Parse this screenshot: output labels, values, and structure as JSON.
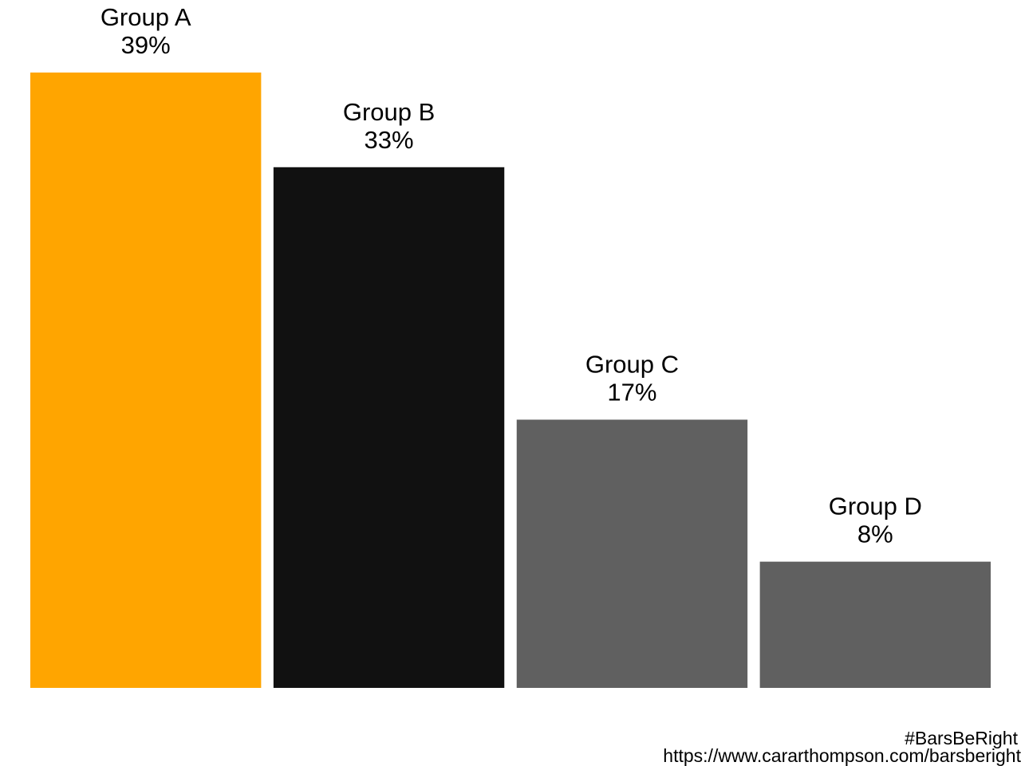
{
  "chart_data": {
    "type": "bar",
    "categories": [
      "Group A",
      "Group B",
      "Group C",
      "Group D"
    ],
    "values": [
      39,
      33,
      17,
      8
    ],
    "value_labels": [
      "39%",
      "33%",
      "17%",
      "8%"
    ],
    "colors": [
      "#FFA500",
      "#111111",
      "#606060",
      "#606060"
    ],
    "ylim": [
      0,
      39
    ],
    "grid": false,
    "xlabel": "",
    "ylabel": "",
    "title": ""
  },
  "caption": {
    "hashtag": "#BarsBeRight",
    "url": "https://www.cararthompson.com/barsberight"
  }
}
